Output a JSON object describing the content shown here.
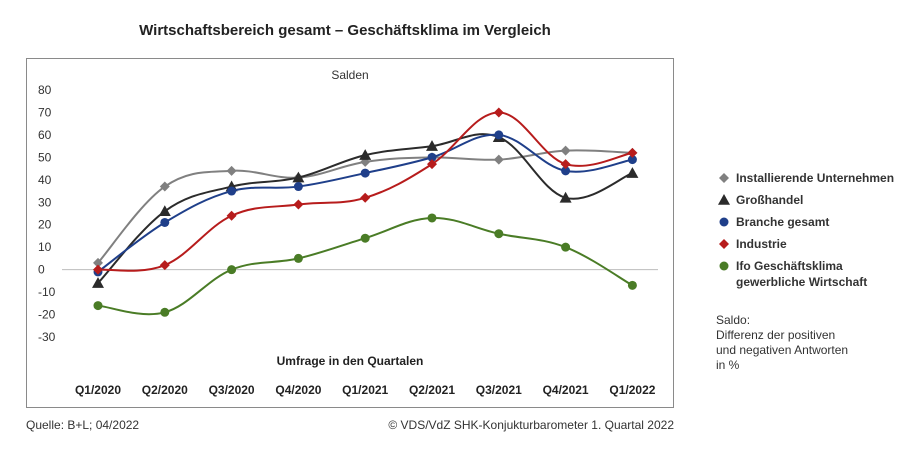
{
  "chart_data": {
    "type": "line",
    "title": "Wirtschaftsbereich gesamt – Geschäftsklima im Vergleich",
    "subtitle": "Salden",
    "xlabel": "Umfrage in den Quartalen",
    "ylabel": "",
    "categories": [
      "Q1/2020",
      "Q2/2020",
      "Q3/2020",
      "Q4/2020",
      "Q1/2021",
      "Q2/2021",
      "Q3/2021",
      "Q4/2021",
      "Q1/2022"
    ],
    "y_ticks": [
      80,
      70,
      60,
      50,
      40,
      30,
      20,
      10,
      0,
      -10,
      -20,
      -30
    ],
    "ylim": [
      -30,
      80
    ],
    "grid": false,
    "legend_position": "right",
    "series": [
      {
        "name": "Installierende Unternehmen",
        "color": "#808080",
        "marker": "diamond",
        "values": [
          3,
          37,
          44,
          41,
          48,
          50,
          49,
          53,
          52
        ]
      },
      {
        "name": "Großhandel",
        "color": "#2b2b2b",
        "marker": "triangle",
        "values": [
          -6,
          26,
          37,
          41,
          51,
          55,
          59,
          32,
          43
        ]
      },
      {
        "name": "Branche gesamt",
        "color": "#1f3f8a",
        "marker": "circle",
        "values": [
          -1,
          21,
          35,
          37,
          43,
          50,
          60,
          44,
          49
        ]
      },
      {
        "name": "Industrie",
        "color": "#b71c1c",
        "marker": "diamond",
        "values": [
          0,
          2,
          24,
          29,
          32,
          47,
          70,
          47,
          52
        ]
      },
      {
        "name": "Ifo Geschäftsklima\ngewerbliche Wirtschaft",
        "color": "#4a7c26",
        "marker": "circle",
        "values": [
          -16,
          -19,
          0,
          5,
          14,
          23,
          16,
          10,
          -7
        ]
      }
    ]
  },
  "note": "Saldo:\nDifferenz der positiven\nund negativen Antworten\nin %",
  "footer": {
    "source": "Quelle: B+L; 04/2022",
    "copyright": "© VDS/VdZ SHK-Konjukturbarometer 1. Quartal 2022"
  }
}
